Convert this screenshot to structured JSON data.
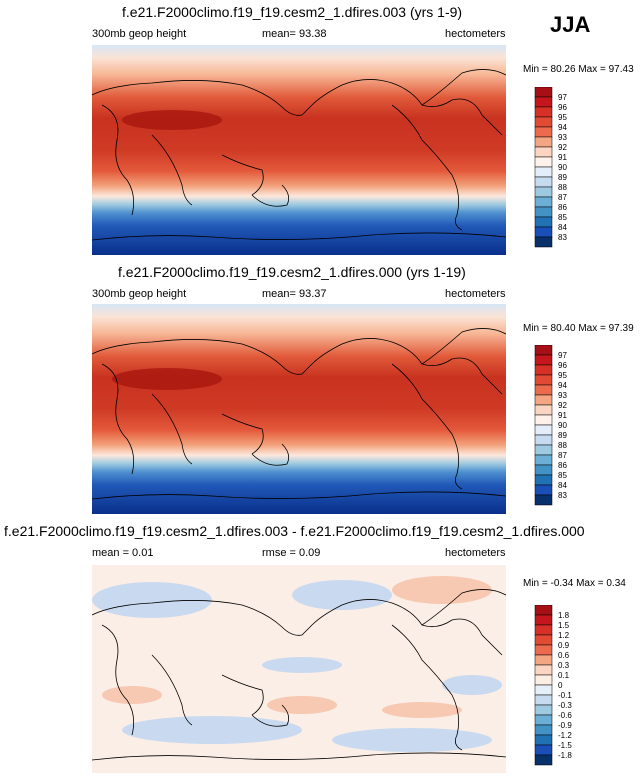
{
  "season": "JJA",
  "panels": [
    {
      "title": "f.e21.F2000climo.f19_f19.cesm2_1.dfires.003 (yrs 1-9)",
      "left_label": "300mb geop height",
      "center_label": "mean=  93.38",
      "right_label": "hectometers",
      "minmax": "Min =  80.26 Max =  97.43",
      "colorbar_labels": [
        "97",
        "96",
        "95",
        "94",
        "93",
        "92",
        "91",
        "90",
        "89",
        "88",
        "87",
        "86",
        "85",
        "84",
        "83"
      ]
    },
    {
      "title": "f.e21.F2000climo.f19_f19.cesm2_1.dfires.000 (yrs 1-19)",
      "left_label": "300mb geop height",
      "center_label": "mean=  93.37",
      "right_label": "hectometers",
      "minmax": "Min =  80.40 Max =  97.39",
      "colorbar_labels": [
        "97",
        "96",
        "95",
        "94",
        "93",
        "92",
        "91",
        "90",
        "89",
        "88",
        "87",
        "86",
        "85",
        "84",
        "83"
      ]
    },
    {
      "title": "f.e21.F2000climo.f19_f19.cesm2_1.dfires.003 - f.e21.F2000climo.f19_f19.cesm2_1.dfires.000",
      "left_label": "mean =   0.01",
      "center_label": "rmse =   0.09",
      "right_label": "hectometers",
      "minmax": "Min =  -0.34 Max =   0.34",
      "colorbar_labels": [
        "1.8",
        "1.5",
        "1.2",
        "0.9",
        "0.6",
        "0.3",
        "0.1",
        "0",
        "-0.1",
        "-0.3",
        "-0.6",
        "-0.9",
        "-1.2",
        "-1.5",
        "-1.8"
      ]
    }
  ],
  "colors": {
    "scale16": [
      "#a50f15",
      "#c4161c",
      "#d73027",
      "#e34a33",
      "#ec6b4d",
      "#f4a582",
      "#fbd5c2",
      "#fff2ea",
      "#e3eef9",
      "#c6dbef",
      "#9ecae1",
      "#6baed6",
      "#4292c6",
      "#2171b5",
      "#1b4fb8",
      "#08306b"
    ],
    "diff_scale16": [
      "#a50f15",
      "#c4161c",
      "#d73027",
      "#e34a33",
      "#ec6b4d",
      "#f4a582",
      "#fbd5c2",
      "#fdeee4",
      "#e6eef8",
      "#c6dbef",
      "#9ecae1",
      "#6baed6",
      "#4292c6",
      "#2171b5",
      "#1b4fb8",
      "#08306b"
    ],
    "diff_positive": "#fbdccb",
    "diff_negative": "#c9daf0"
  }
}
